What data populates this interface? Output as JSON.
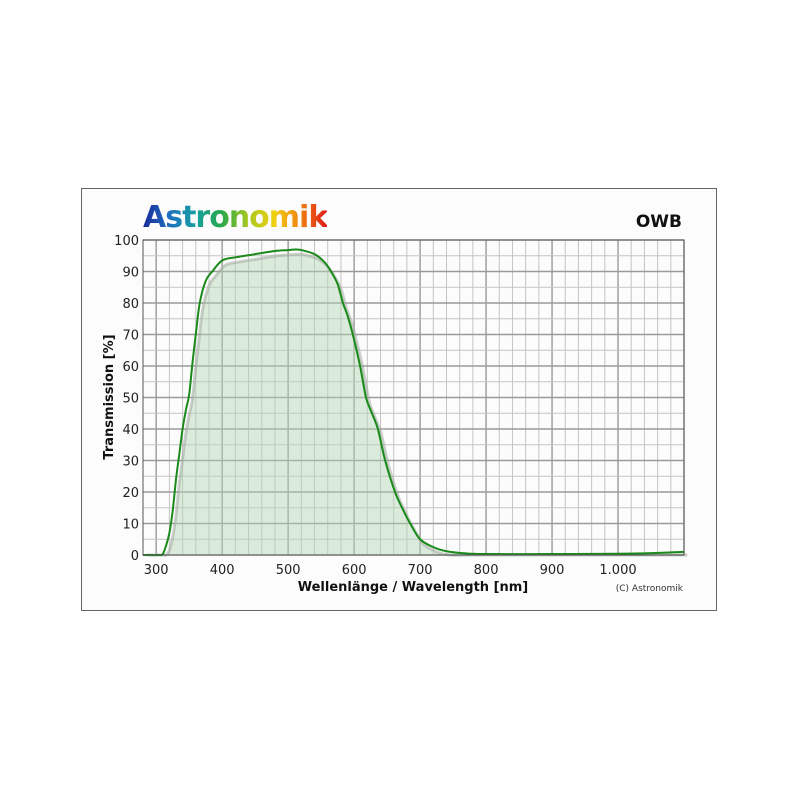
{
  "logo": "Astronomik",
  "filter_name": "OWB",
  "copyright": "(C) Astronomik",
  "chart_data": {
    "type": "line",
    "title": "OWB",
    "xlabel": "Wellenlänge / Wavelength [nm]",
    "ylabel": "Transmission [%]",
    "xlim": [
      280,
      1100
    ],
    "ylim": [
      0,
      100
    ],
    "xticks": [
      300,
      400,
      500,
      600,
      700,
      800,
      900,
      1000
    ],
    "xtick_labels": [
      "300",
      "400",
      "500",
      "600",
      "700",
      "800",
      "900",
      "1.000"
    ],
    "yticks": [
      0,
      10,
      20,
      30,
      40,
      50,
      60,
      70,
      80,
      90,
      100
    ],
    "grid": true,
    "line_color": "#1a8a1a",
    "fill_color": "#dce9dc",
    "series": [
      {
        "x": [
          280,
          305,
          310,
          315,
          320,
          325,
          330,
          335,
          340,
          345,
          350,
          355,
          360,
          366,
          375,
          385,
          400,
          420,
          450,
          480,
          500,
          510,
          520,
          540,
          555,
          565,
          575,
          583,
          590,
          598,
          609,
          618,
          627,
          636,
          647,
          662,
          675,
          685,
          700,
          720,
          740,
          770,
          800,
          900,
          1000,
          1050,
          1100
        ],
        "y": [
          0,
          0,
          0.3,
          3,
          7,
          14,
          24,
          32,
          40,
          46,
          51,
          61,
          70,
          80,
          87,
          90,
          93.5,
          94.5,
          95.5,
          96.5,
          96.8,
          97,
          96.8,
          95.5,
          93,
          90,
          86,
          80,
          76,
          70,
          60,
          50,
          45,
          40,
          30,
          20,
          14,
          10,
          5,
          2.5,
          1.2,
          0.5,
          0.3,
          0.3,
          0.4,
          0.6,
          1.0
        ]
      }
    ]
  }
}
